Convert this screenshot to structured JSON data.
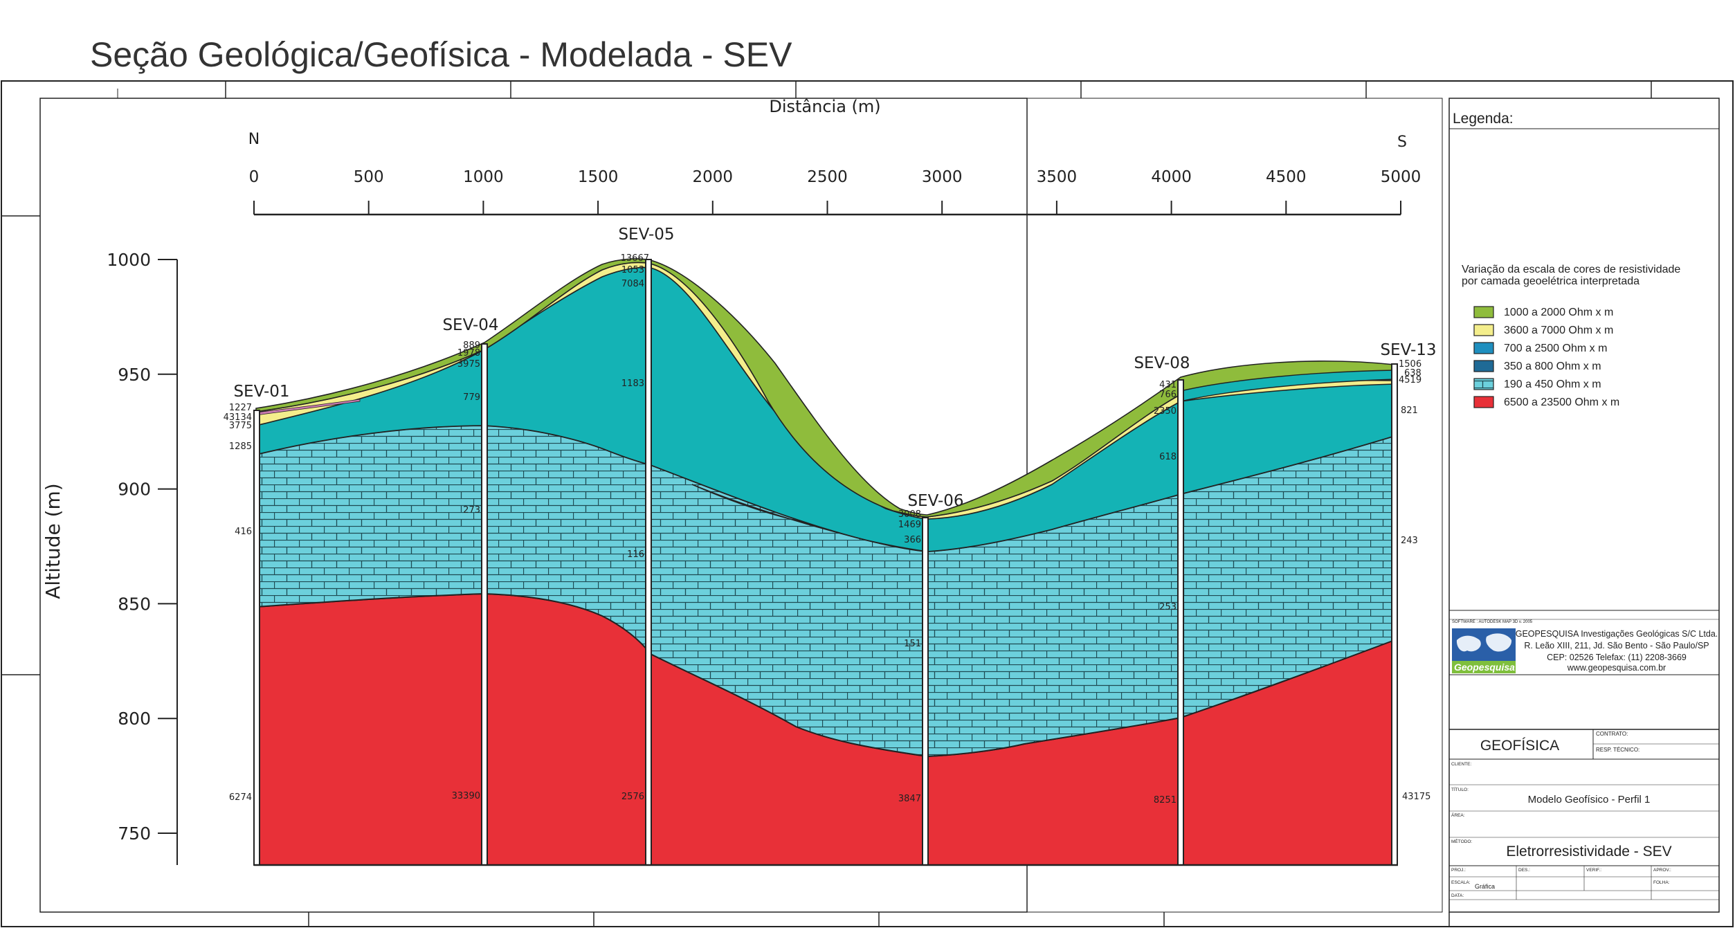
{
  "title": "Seção Geológica/Geofísica - Modelada - SEV",
  "x_axis": {
    "label": "Distância (m)",
    "north": "N",
    "south": "S",
    "ticks": [
      "0",
      "500",
      "1000",
      "1500",
      "2000",
      "2500",
      "3000",
      "3500",
      "4000",
      "4500",
      "5000"
    ]
  },
  "y_axis": {
    "label": "Altitude (m)",
    "ticks": [
      "1000",
      "950",
      "900",
      "850",
      "800",
      "750"
    ]
  },
  "soundings": [
    {
      "name": "SEV-01",
      "distance_m": 0,
      "resistivities": [
        "1227",
        "43134",
        "3775",
        "1285",
        "416",
        "6274"
      ]
    },
    {
      "name": "SEV-04",
      "distance_m": 1000,
      "resistivities": [
        "889",
        "1978",
        "3975",
        "779",
        "273",
        "33390"
      ]
    },
    {
      "name": "SEV-05",
      "distance_m": 1720,
      "resistivities": [
        "13667",
        "1053",
        "7084",
        "1183",
        "116",
        "2576"
      ]
    },
    {
      "name": "SEV-06",
      "distance_m": 2930,
      "resistivities": [
        "3008",
        "1469",
        "366",
        "151",
        "3847"
      ]
    },
    {
      "name": "SEV-08",
      "distance_m": 4060,
      "resistivities": [
        "431",
        "766",
        "2350",
        "618",
        "253",
        "8251"
      ]
    },
    {
      "name": "SEV-13",
      "distance_m": 5000,
      "resistivities": [
        "1506",
        "638",
        "4519",
        "821",
        "243",
        "43175"
      ]
    }
  ],
  "legend": {
    "heading": "Legenda:",
    "description_line1": "Variação da escala de cores de resistividade",
    "description_line2": "por camada geoelétrica interpretada",
    "items": [
      {
        "label": "1000 a 2000 Ohm x m",
        "color": "#8fbc3c"
      },
      {
        "label": "3600 a 7000 Ohm x m",
        "color": "#f4ee8c"
      },
      {
        "label": "700 a 2500 Ohm x m",
        "color": "#1f8fbf"
      },
      {
        "label": "350 a 800 Ohm x m",
        "color": "#1f6a96"
      },
      {
        "label": "190 a 450 Ohm x m",
        "color": "#6cd0dc"
      },
      {
        "label": "6500 a 23500 Ohm x m",
        "color": "#e83038"
      }
    ]
  },
  "company": {
    "software": "SOFTWARE : AUTODESK MAP 3D v. 2005",
    "name": "GEOPESQUISA Investigações Geológicas S/C Ltda.",
    "address": "R. Leão XIII, 211, Jd. São Bento - São Paulo/SP",
    "cep": "CEP: 02526   Telefax: (11) 2208-3669",
    "website": "www.geopesquisa.com.br",
    "logo_text": "Geopesquisa"
  },
  "title_block": {
    "discipline": "GEOFÍSICA",
    "contrato_label": "CONTRATO:",
    "resp_label": "RESP. TÉCNICO:",
    "cliente_label": "CLIENTE:",
    "titulo_label": "TÍTULO:",
    "titulo": "Modelo Geofísico - Perfil 1",
    "area_label": "ÁREA:",
    "metodo_label": "MÉTODO:",
    "metodo": "Eletrorresistividade - SEV",
    "proj_label": "PROJ.:",
    "des_label": "DES.:",
    "verif_label": "VERIF.:",
    "aprov_label": "APROV.:",
    "escala_label": "ESCALA:",
    "escala": "Gráfica",
    "folha_label": "FOLHA:",
    "data_label": "DATA:"
  },
  "colors": {
    "green": "#8fbc3c",
    "yellow": "#f4ee8c",
    "teal": "#14b3b5",
    "blue": "#1f6a96",
    "limestone": "#6cd0dc",
    "red": "#e83038",
    "pink": "#c97bb0"
  }
}
